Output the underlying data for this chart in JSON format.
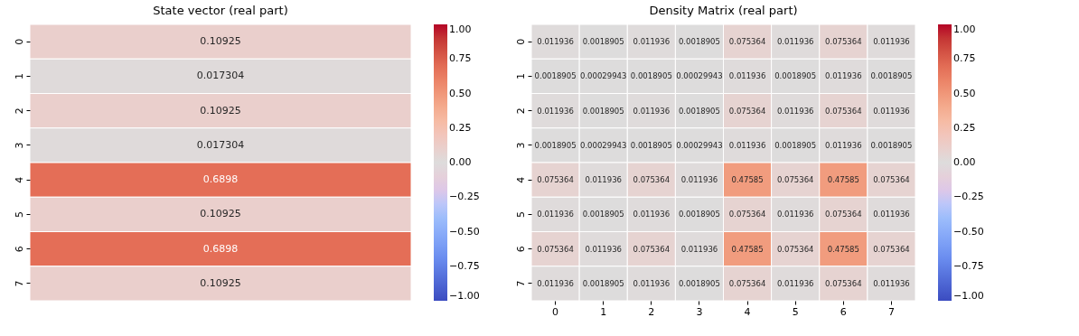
{
  "chart_data": [
    {
      "type": "heatmap",
      "title": "State vector (real part)",
      "categories": [
        null
      ],
      "y_categories": [
        "0",
        "1",
        "2",
        "3",
        "4",
        "5",
        "6",
        "7"
      ],
      "cells": [
        [
          0.10925
        ],
        [
          0.017304
        ],
        [
          0.10925
        ],
        [
          0.017304
        ],
        [
          0.6898
        ],
        [
          0.10925
        ],
        [
          0.6898
        ],
        [
          0.10925
        ]
      ],
      "clim": [
        -1,
        1
      ],
      "cticks": [
        {
          "value": 1,
          "label": "1.00"
        },
        {
          "value": 0.75,
          "label": "0.75"
        },
        {
          "value": 0.5,
          "label": "0.50"
        },
        {
          "value": 0.25,
          "label": "0.25"
        },
        {
          "value": 0,
          "label": "0.00"
        },
        {
          "value": -0.25,
          "label": "−0.25"
        },
        {
          "value": -0.5,
          "label": "−0.50"
        },
        {
          "value": -0.75,
          "label": "−0.75"
        },
        {
          "value": -1,
          "label": "−1.00"
        }
      ],
      "data_labels": true
    },
    {
      "type": "heatmap",
      "title": "Density Matrix (real part)",
      "categories": [
        "0",
        "1",
        "2",
        "3",
        "4",
        "5",
        "6",
        "7"
      ],
      "y_categories": [
        "0",
        "1",
        "2",
        "3",
        "4",
        "5",
        "6",
        "7"
      ],
      "cells": [
        [
          0.011936,
          0.0018905,
          0.011936,
          0.0018905,
          0.075364,
          0.011936,
          0.075364,
          0.011936
        ],
        [
          0.0018905,
          0.00029943,
          0.0018905,
          0.00029943,
          0.011936,
          0.0018905,
          0.011936,
          0.0018905
        ],
        [
          0.011936,
          0.0018905,
          0.011936,
          0.0018905,
          0.075364,
          0.011936,
          0.075364,
          0.011936
        ],
        [
          0.0018905,
          0.00029943,
          0.0018905,
          0.00029943,
          0.011936,
          0.0018905,
          0.011936,
          0.0018905
        ],
        [
          0.075364,
          0.011936,
          0.075364,
          0.011936,
          0.47585,
          0.075364,
          0.47585,
          0.075364
        ],
        [
          0.011936,
          0.0018905,
          0.011936,
          0.0018905,
          0.075364,
          0.011936,
          0.075364,
          0.011936
        ],
        [
          0.075364,
          0.011936,
          0.075364,
          0.011936,
          0.47585,
          0.075364,
          0.47585,
          0.075364
        ],
        [
          0.011936,
          0.0018905,
          0.011936,
          0.0018905,
          0.075364,
          0.011936,
          0.075364,
          0.011936
        ]
      ],
      "clim": [
        -1,
        1
      ],
      "cticks": [
        {
          "value": 1,
          "label": "1.00"
        },
        {
          "value": 0.75,
          "label": "0.75"
        },
        {
          "value": 0.5,
          "label": "0.50"
        },
        {
          "value": 0.25,
          "label": "0.25"
        },
        {
          "value": 0,
          "label": "0.00"
        },
        {
          "value": -0.25,
          "label": "−0.25"
        },
        {
          "value": -0.5,
          "label": "−0.50"
        },
        {
          "value": -0.75,
          "label": "−0.75"
        },
        {
          "value": -1,
          "label": "−1.00"
        }
      ],
      "data_labels": true
    }
  ]
}
